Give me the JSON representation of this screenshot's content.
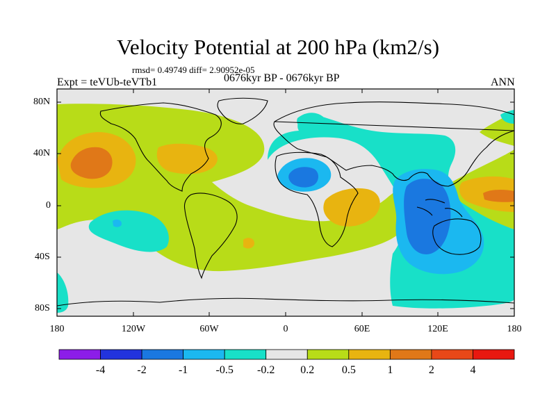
{
  "title": "Velocity Potential at 200 hPa (km2/s)",
  "stats": "rmsd= 0.49749 diff= 2.90952e-05",
  "experiment": "Expt = teVUb-teVTb1",
  "period": "0676kyr BP - 0676kyr BP",
  "season": "ANN",
  "lat_labels": [
    "80N",
    "40N",
    "0",
    "40S",
    "80S"
  ],
  "lon_labels": [
    "180",
    "120W",
    "60W",
    "0",
    "60E",
    "120E",
    "180"
  ],
  "colorbar": {
    "colors": [
      "#8c1de8",
      "#2233dd",
      "#1a78e0",
      "#1bb8f0",
      "#18e0c8",
      "#e6e6e6",
      "#b8dc18",
      "#e8b410",
      "#e07818",
      "#e84818",
      "#e81810"
    ],
    "labels": [
      "-4",
      "-2",
      "-1",
      "-0.5",
      "-0.2",
      "0.2",
      "0.5",
      "1",
      "2",
      "4"
    ]
  }
}
